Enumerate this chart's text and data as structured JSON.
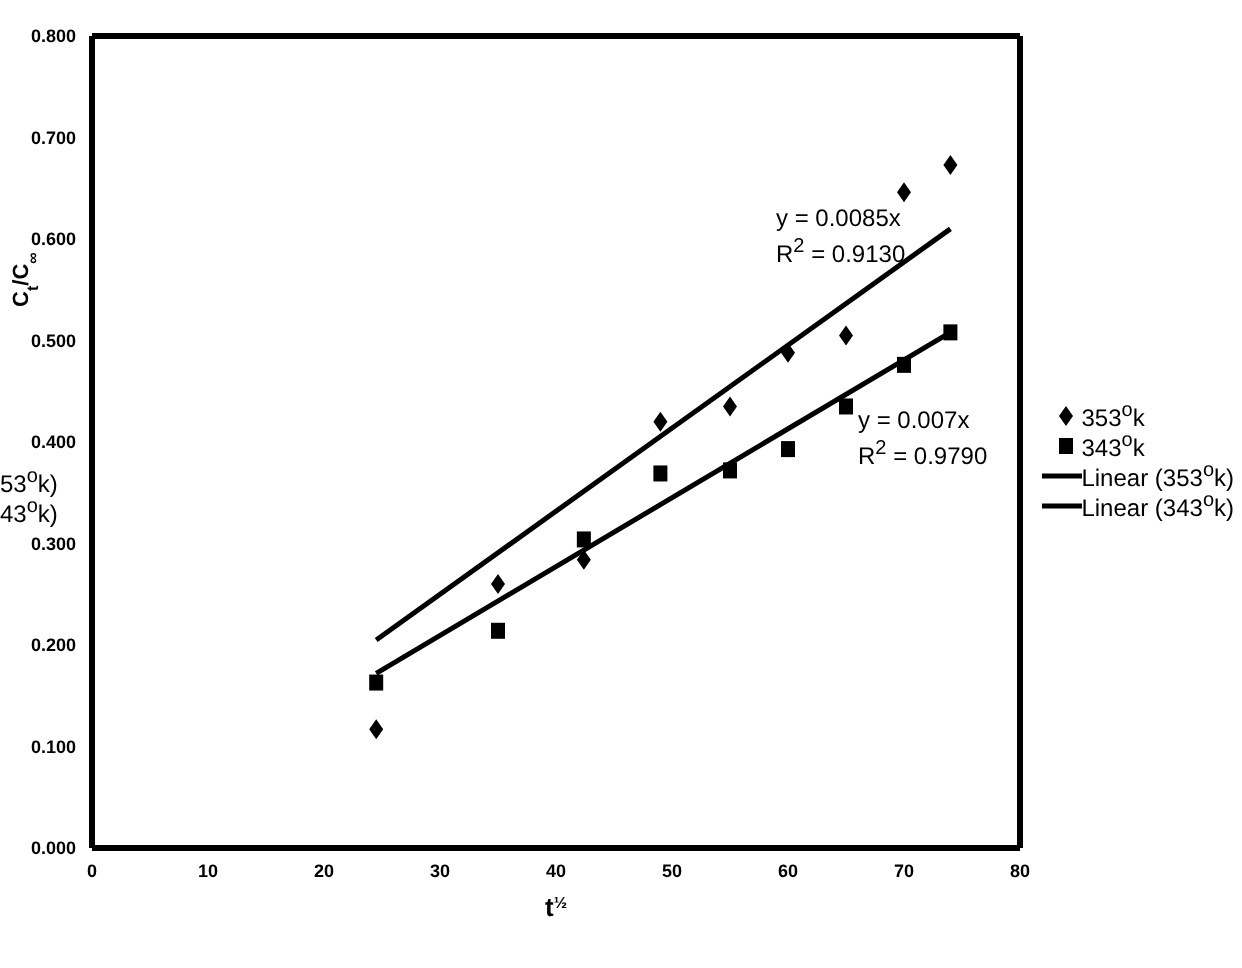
{
  "chart_data": {
    "type": "scatter",
    "xlabel": "t$^{½}$",
    "ylabel": "C$_{t}$/C$_{∞}$",
    "xlim": [
      0,
      80
    ],
    "xticks": [
      0,
      10,
      20,
      30,
      40,
      50,
      60,
      70,
      80
    ],
    "ylim": [
      0,
      0.8
    ],
    "yticks": [
      {
        "value": 0,
        "label": "0.000"
      },
      {
        "value": 0.1,
        "label": "0.100"
      },
      {
        "value": 0.2,
        "label": "0.200"
      },
      {
        "value": 0.3,
        "label": "0.300"
      },
      {
        "value": 0.4,
        "label": "0.400"
      },
      {
        "value": 0.5,
        "label": "0.500"
      },
      {
        "value": 0.6,
        "label": "0.600"
      },
      {
        "value": 0.7,
        "label": "0.700"
      },
      {
        "value": 0.8,
        "label": "0.800"
      }
    ],
    "grid": false,
    "legend": "right",
    "series": [
      {
        "name": "353$^{o}$k",
        "marker": "diamond",
        "color": "#000000",
        "x": [
          24.5,
          35,
          42.4,
          49,
          55,
          60,
          65,
          70,
          74
        ],
        "values": [
          0.117,
          0.26,
          0.284,
          0.42,
          0.435,
          0.488,
          0.505,
          0.646,
          0.673
        ]
      },
      {
        "name": "343$^{o}$k",
        "marker": "square",
        "color": "#000000",
        "x": [
          24.5,
          35,
          42.4,
          49,
          55,
          60,
          65,
          70,
          74
        ],
        "values": [
          0.163,
          0.214,
          0.304,
          0.369,
          0.372,
          0.393,
          0.435,
          0.476,
          0.508
        ]
      },
      {
        "name": "Linear (353$^{o}$k)",
        "type": "line",
        "marker": "none",
        "color": "#000000",
        "x": [
          24.5,
          74
        ],
        "values": [
          0.205,
          0.61
        ]
      },
      {
        "name": "Linear (343$^{o}$k)",
        "type": "line",
        "marker": "none",
        "color": "#000000",
        "x": [
          24.5,
          74
        ],
        "values": [
          0.172,
          0.508
        ]
      }
    ],
    "annotations": [
      "y = 0.0085x",
      "R$^{2}$ = 0.9130",
      "y = 0.007x",
      "R$^{2}$ = 0.9790",
      "53$^{o}$k)",
      "43$^{o}$k)"
    ]
  }
}
